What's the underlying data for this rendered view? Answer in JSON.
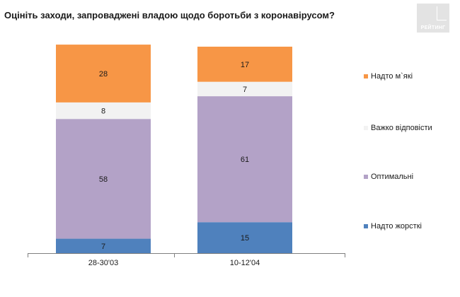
{
  "title": "Оцініть заходи, запроваджені владою щодо боротьби з коронавірусом?",
  "logo_text": "РЕЙТИНГ",
  "colors": {
    "orange": "#f79646",
    "light": "#f2f2f2",
    "purple": "#b3a2c7",
    "blue": "#4f81bd"
  },
  "chart_data": {
    "type": "bar",
    "stacked": true,
    "categories": [
      "28-30'03",
      "10-12'04"
    ],
    "series": [
      {
        "name": "Надто жорсткі",
        "color": "#4f81bd",
        "values": [
          7,
          15
        ]
      },
      {
        "name": "Оптимальні",
        "color": "#b3a2c7",
        "values": [
          58,
          61
        ]
      },
      {
        "name": "Важко відповісти",
        "color": "#f2f2f2",
        "values": [
          8,
          7
        ]
      },
      {
        "name": "Надто м`які",
        "color": "#f79646",
        "values": [
          28,
          17
        ]
      }
    ],
    "ylim": [
      0,
      100
    ],
    "legend_position": "right",
    "grid": false
  }
}
